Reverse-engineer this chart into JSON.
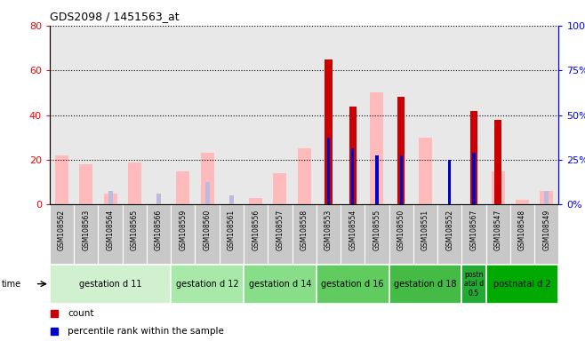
{
  "title": "GDS2098 / 1451563_at",
  "samples": [
    "GSM108562",
    "GSM108563",
    "GSM108564",
    "GSM108565",
    "GSM108566",
    "GSM108559",
    "GSM108560",
    "GSM108561",
    "GSM108556",
    "GSM108557",
    "GSM108558",
    "GSM108553",
    "GSM108554",
    "GSM108555",
    "GSM108550",
    "GSM108551",
    "GSM108552",
    "GSM108567",
    "GSM108547",
    "GSM108548",
    "GSM108549"
  ],
  "count": [
    0,
    0,
    0,
    0,
    0,
    0,
    0,
    0,
    0,
    0,
    0,
    65,
    44,
    0,
    48,
    0,
    0,
    42,
    38,
    0,
    0
  ],
  "percentile_rank": [
    0,
    0,
    0,
    0,
    0,
    0,
    0,
    0,
    0,
    0,
    0,
    30,
    25,
    22,
    22,
    0,
    20,
    23,
    0,
    0,
    0
  ],
  "value_absent": [
    22,
    18,
    5,
    19,
    0,
    15,
    23,
    0,
    3,
    14,
    25,
    0,
    0,
    50,
    0,
    30,
    0,
    0,
    15,
    2,
    6
  ],
  "rank_absent": [
    0,
    0,
    6,
    0,
    5,
    0,
    10,
    4,
    0,
    0,
    0,
    0,
    0,
    0,
    0,
    0,
    0,
    0,
    0,
    0,
    6
  ],
  "groups": [
    {
      "label": "gestation d 11",
      "start": 0,
      "end": 5,
      "color": "#d0f0d0"
    },
    {
      "label": "gestation d 12",
      "start": 5,
      "end": 8,
      "color": "#a8e8a8"
    },
    {
      "label": "gestation d 14",
      "start": 8,
      "end": 11,
      "color": "#88de88"
    },
    {
      "label": "gestation d 16",
      "start": 11,
      "end": 14,
      "color": "#60cc60"
    },
    {
      "label": "gestation d 18",
      "start": 14,
      "end": 17,
      "color": "#44bb44"
    },
    {
      "label": "postn\natal d\n0.5",
      "start": 17,
      "end": 18,
      "color": "#22aa33"
    },
    {
      "label": "postnatal d 2",
      "start": 18,
      "end": 21,
      "color": "#00aa00"
    }
  ],
  "color_count": "#cc0000",
  "color_rank": "#0000cc",
  "color_value_absent": "#ffbbbb",
  "color_rank_absent": "#bbbbdd",
  "plot_bg": "#e8e8e8",
  "label_bg": "#c8c8c8",
  "ylim_left": [
    0,
    80
  ],
  "ylim_right": [
    0,
    100
  ],
  "yticks_left": [
    0,
    20,
    40,
    60,
    80
  ],
  "yticks_right": [
    0,
    25,
    50,
    75,
    100
  ],
  "ytick_labels_right": [
    "0%",
    "25%",
    "50%",
    "75%",
    "100%"
  ]
}
